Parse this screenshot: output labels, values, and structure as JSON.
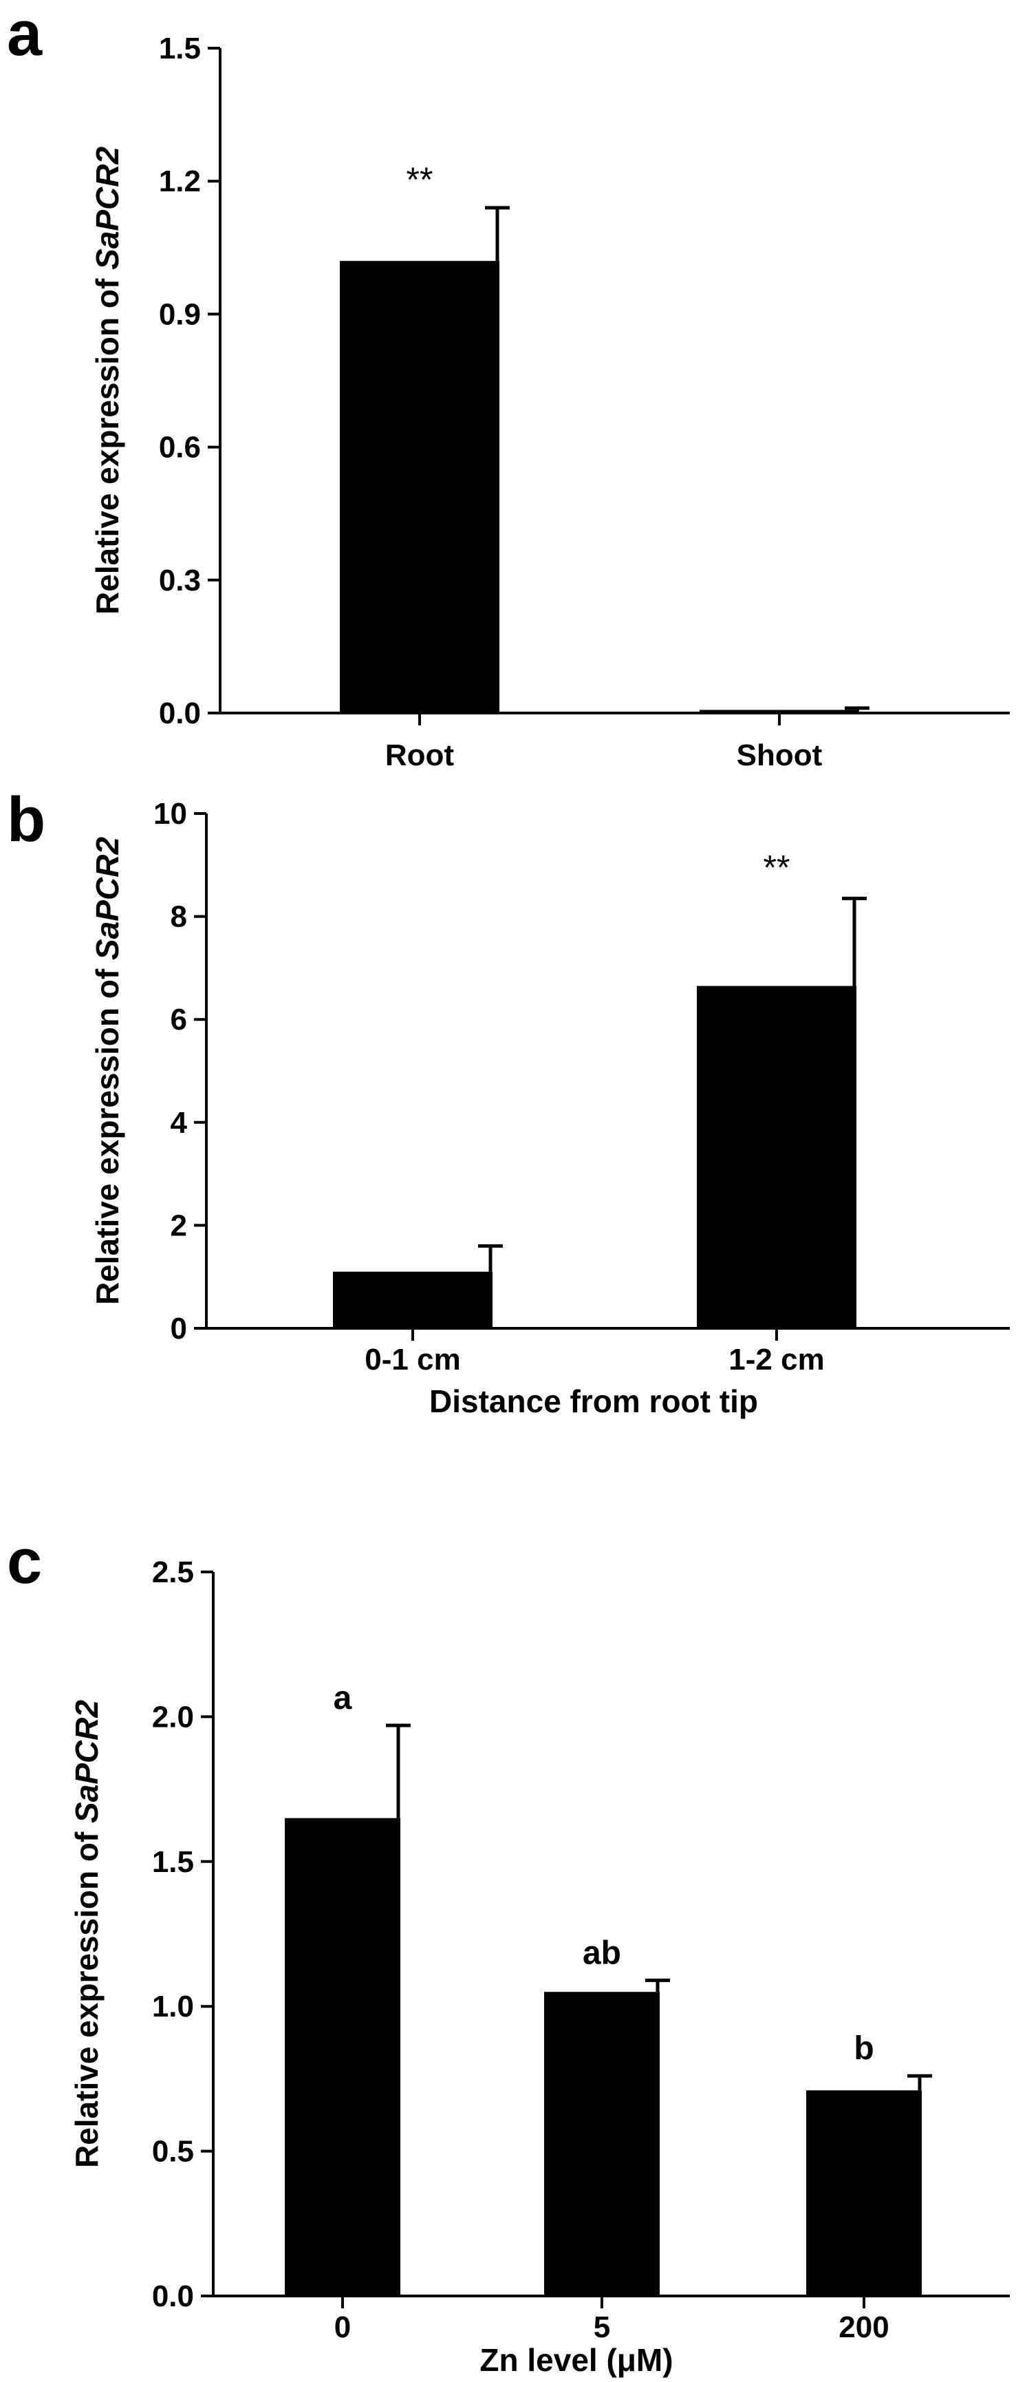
{
  "chart_data": [
    {
      "panel": "a",
      "type": "bar",
      "categories": [
        "Root",
        "Shoot"
      ],
      "values": [
        1.02,
        0.007
      ],
      "errors": [
        0.12,
        0.004
      ],
      "annotations": [
        "**",
        ""
      ],
      "yticks": [
        "0.0",
        "0.3",
        "0.6",
        "0.9",
        "1.2",
        "1.5"
      ],
      "ylim": [
        0,
        1.5
      ],
      "ylabel_prefix": "Relative expression of ",
      "ylabel_gene": "SaPCR2",
      "xlabel": ""
    },
    {
      "panel": "b",
      "type": "bar",
      "categories": [
        "0-1 cm",
        "1-2 cm"
      ],
      "values": [
        1.1,
        6.65
      ],
      "errors": [
        0.5,
        1.7
      ],
      "annotations": [
        "",
        "**"
      ],
      "yticks": [
        "0",
        "2",
        "4",
        "6",
        "8",
        "10"
      ],
      "ylim": [
        0,
        10
      ],
      "ylabel_prefix": "Relative expression of ",
      "ylabel_gene": "SaPCR2",
      "xlabel": "Distance from root tip"
    },
    {
      "panel": "c",
      "type": "bar",
      "categories": [
        "0",
        "5",
        "200"
      ],
      "values": [
        1.65,
        1.05,
        0.71
      ],
      "errors": [
        0.32,
        0.04,
        0.05
      ],
      "annotations": [
        "a",
        "ab",
        "b"
      ],
      "yticks": [
        "0.0",
        "0.5",
        "1.0",
        "1.5",
        "2.0",
        "2.5"
      ],
      "ylim": [
        0,
        2.5
      ],
      "ylabel_prefix": "Relative expression of ",
      "ylabel_gene": "SaPCR2",
      "xlabel": "Zn level (μM)"
    }
  ],
  "colors": {
    "bar": "#000000",
    "axis": "#000000"
  }
}
